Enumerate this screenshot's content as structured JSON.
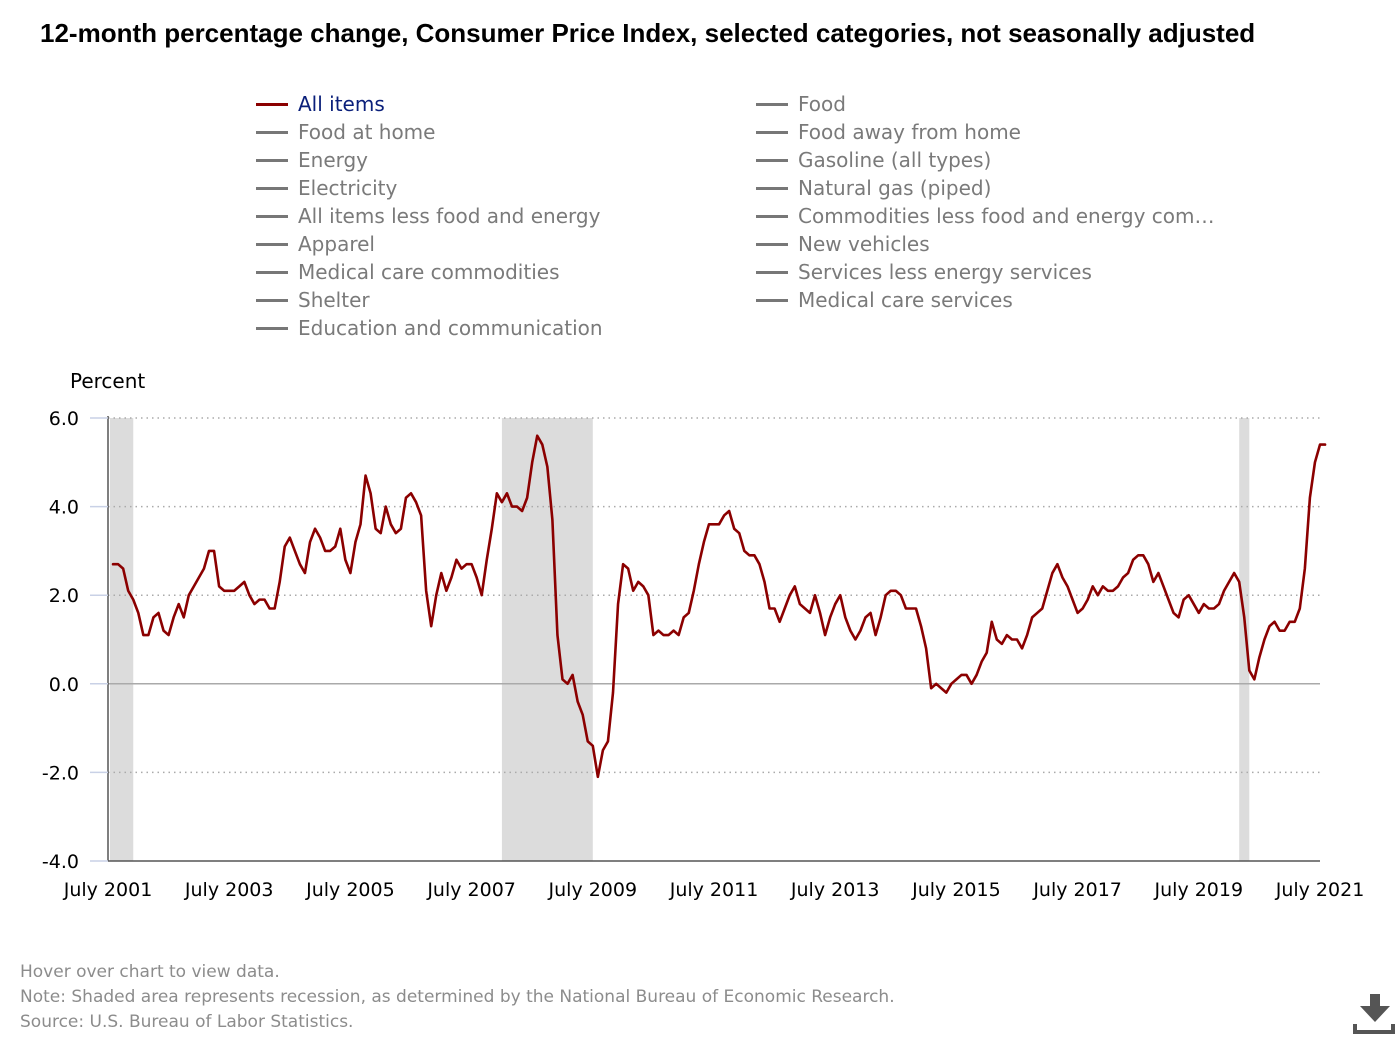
{
  "title": "12-month percentage change, Consumer Price Index, selected categories, not seasonally adjusted",
  "legend": [
    {
      "label": "All items",
      "active": true
    },
    {
      "label": "Food",
      "active": false
    },
    {
      "label": "Food at home",
      "active": false
    },
    {
      "label": "Food away from home",
      "active": false
    },
    {
      "label": "Energy",
      "active": false
    },
    {
      "label": "Gasoline (all types)",
      "active": false
    },
    {
      "label": "Electricity",
      "active": false
    },
    {
      "label": "Natural gas (piped)",
      "active": false
    },
    {
      "label": "All items less food and energy",
      "active": false
    },
    {
      "label": "Commodities less food and energy com…",
      "active": false
    },
    {
      "label": "Apparel",
      "active": false
    },
    {
      "label": "New vehicles",
      "active": false
    },
    {
      "label": "Medical care commodities",
      "active": false
    },
    {
      "label": "Services less energy services",
      "active": false
    },
    {
      "label": "Shelter",
      "active": false
    },
    {
      "label": "Medical care services",
      "active": false
    },
    {
      "label": "Education and communication",
      "active": false
    }
  ],
  "footer": {
    "hover": "Hover over chart to view data.",
    "note": "Note: Shaded area represents recession, as determined by the National Bureau of Economic Research.",
    "source": "Source: U.S. Bureau of Labor Statistics."
  },
  "icons": {
    "download": "download-icon"
  },
  "chart_data": {
    "type": "line",
    "ylabel": "Percent",
    "ylim": [
      -4.0,
      6.0
    ],
    "yticks": [
      -4.0,
      -2.0,
      0.0,
      2.0,
      4.0,
      6.0
    ],
    "ytick_labels": [
      "-4.0",
      "-2.0",
      "0.0",
      "2.0",
      "4.0",
      "6.0"
    ],
    "xlim": [
      "2001-06",
      "2021-06"
    ],
    "xticks": [
      "2001-06",
      "2003-06",
      "2005-06",
      "2007-06",
      "2009-06",
      "2011-06",
      "2013-06",
      "2015-06",
      "2017-06",
      "2019-06",
      "2021-06"
    ],
    "xtick_labels": [
      "July 2001",
      "July 2003",
      "July 2005",
      "July 2007",
      "July 2009",
      "July 2011",
      "July 2013",
      "July 2015",
      "July 2017",
      "July 2019",
      "July 2021"
    ],
    "grid": true,
    "colors": {
      "series": "#8b0000",
      "recession": "#dcdcdc",
      "axis": "#555555",
      "grid": "#aaaaaa",
      "zero_line": "#aaaaaa"
    },
    "recessions": [
      [
        "2001-03",
        "2001-11"
      ],
      [
        "2007-12",
        "2009-06"
      ],
      [
        "2020-02",
        "2020-04"
      ]
    ],
    "series": [
      {
        "name": "All items",
        "x": [
          "2001-07",
          "2001-08",
          "2001-09",
          "2001-10",
          "2001-11",
          "2001-12",
          "2002-01",
          "2002-02",
          "2002-03",
          "2002-04",
          "2002-05",
          "2002-06",
          "2002-07",
          "2002-08",
          "2002-09",
          "2002-10",
          "2002-11",
          "2002-12",
          "2003-01",
          "2003-02",
          "2003-03",
          "2003-04",
          "2003-05",
          "2003-06",
          "2003-07",
          "2003-08",
          "2003-09",
          "2003-10",
          "2003-11",
          "2003-12",
          "2004-01",
          "2004-02",
          "2004-03",
          "2004-04",
          "2004-05",
          "2004-06",
          "2004-07",
          "2004-08",
          "2004-09",
          "2004-10",
          "2004-11",
          "2004-12",
          "2005-01",
          "2005-02",
          "2005-03",
          "2005-04",
          "2005-05",
          "2005-06",
          "2005-07",
          "2005-08",
          "2005-09",
          "2005-10",
          "2005-11",
          "2005-12",
          "2006-01",
          "2006-02",
          "2006-03",
          "2006-04",
          "2006-05",
          "2006-06",
          "2006-07",
          "2006-08",
          "2006-09",
          "2006-10",
          "2006-11",
          "2006-12",
          "2007-01",
          "2007-02",
          "2007-03",
          "2007-04",
          "2007-05",
          "2007-06",
          "2007-07",
          "2007-08",
          "2007-09",
          "2007-10",
          "2007-11",
          "2007-12",
          "2008-01",
          "2008-02",
          "2008-03",
          "2008-04",
          "2008-05",
          "2008-06",
          "2008-07",
          "2008-08",
          "2008-09",
          "2008-10",
          "2008-11",
          "2008-12",
          "2009-01",
          "2009-02",
          "2009-03",
          "2009-04",
          "2009-05",
          "2009-06",
          "2009-07",
          "2009-08",
          "2009-09",
          "2009-10",
          "2009-11",
          "2009-12",
          "2010-01",
          "2010-02",
          "2010-03",
          "2010-04",
          "2010-05",
          "2010-06",
          "2010-07",
          "2010-08",
          "2010-09",
          "2010-10",
          "2010-11",
          "2010-12",
          "2011-01",
          "2011-02",
          "2011-03",
          "2011-04",
          "2011-05",
          "2011-06",
          "2011-07",
          "2011-08",
          "2011-09",
          "2011-10",
          "2011-11",
          "2011-12",
          "2012-01",
          "2012-02",
          "2012-03",
          "2012-04",
          "2012-05",
          "2012-06",
          "2012-07",
          "2012-08",
          "2012-09",
          "2012-10",
          "2012-11",
          "2012-12",
          "2013-01",
          "2013-02",
          "2013-03",
          "2013-04",
          "2013-05",
          "2013-06",
          "2013-07",
          "2013-08",
          "2013-09",
          "2013-10",
          "2013-11",
          "2013-12",
          "2014-01",
          "2014-02",
          "2014-03",
          "2014-04",
          "2014-05",
          "2014-06",
          "2014-07",
          "2014-08",
          "2014-09",
          "2014-10",
          "2014-11",
          "2014-12",
          "2015-01",
          "2015-02",
          "2015-03",
          "2015-04",
          "2015-05",
          "2015-06",
          "2015-07",
          "2015-08",
          "2015-09",
          "2015-10",
          "2015-11",
          "2015-12",
          "2016-01",
          "2016-02",
          "2016-03",
          "2016-04",
          "2016-05",
          "2016-06",
          "2016-07",
          "2016-08",
          "2016-09",
          "2016-10",
          "2016-11",
          "2016-12",
          "2017-01",
          "2017-02",
          "2017-03",
          "2017-04",
          "2017-05",
          "2017-06",
          "2017-07",
          "2017-08",
          "2017-09",
          "2017-10",
          "2017-11",
          "2017-12",
          "2018-01",
          "2018-02",
          "2018-03",
          "2018-04",
          "2018-05",
          "2018-06",
          "2018-07",
          "2018-08",
          "2018-09",
          "2018-10",
          "2018-11",
          "2018-12",
          "2019-01",
          "2019-02",
          "2019-03",
          "2019-04",
          "2019-05",
          "2019-06",
          "2019-07",
          "2019-08",
          "2019-09",
          "2019-10",
          "2019-11",
          "2019-12",
          "2020-01",
          "2020-02",
          "2020-03",
          "2020-04",
          "2020-05",
          "2020-06",
          "2020-07",
          "2020-08",
          "2020-09",
          "2020-10",
          "2020-11",
          "2020-12",
          "2021-01",
          "2021-02",
          "2021-03",
          "2021-04",
          "2021-05",
          "2021-06",
          "2021-07"
        ],
        "values": [
          2.7,
          2.7,
          2.6,
          2.1,
          1.9,
          1.6,
          1.1,
          1.1,
          1.5,
          1.6,
          1.2,
          1.1,
          1.5,
          1.8,
          1.5,
          2.0,
          2.2,
          2.4,
          2.6,
          3.0,
          3.0,
          2.2,
          2.1,
          2.1,
          2.1,
          2.2,
          2.3,
          2.0,
          1.8,
          1.9,
          1.9,
          1.7,
          1.7,
          2.3,
          3.1,
          3.3,
          3.0,
          2.7,
          2.5,
          3.2,
          3.5,
          3.3,
          3.0,
          3.0,
          3.1,
          3.5,
          2.8,
          2.5,
          3.2,
          3.6,
          4.7,
          4.3,
          3.5,
          3.4,
          4.0,
          3.6,
          3.4,
          3.5,
          4.2,
          4.3,
          4.1,
          3.8,
          2.1,
          1.3,
          2.0,
          2.5,
          2.1,
          2.4,
          2.8,
          2.6,
          2.7,
          2.7,
          2.4,
          2.0,
          2.8,
          3.5,
          4.3,
          4.1,
          4.3,
          4.0,
          4.0,
          3.9,
          4.2,
          5.0,
          5.6,
          5.4,
          4.9,
          3.7,
          1.1,
          0.1,
          0.0,
          0.2,
          -0.4,
          -0.7,
          -1.3,
          -1.4,
          -2.1,
          -1.5,
          -1.3,
          -0.2,
          1.8,
          2.7,
          2.6,
          2.1,
          2.3,
          2.2,
          2.0,
          1.1,
          1.2,
          1.1,
          1.1,
          1.2,
          1.1,
          1.5,
          1.6,
          2.1,
          2.7,
          3.2,
          3.6,
          3.6,
          3.6,
          3.8,
          3.9,
          3.5,
          3.4,
          3.0,
          2.9,
          2.9,
          2.7,
          2.3,
          1.7,
          1.7,
          1.4,
          1.7,
          2.0,
          2.2,
          1.8,
          1.7,
          1.6,
          2.0,
          1.6,
          1.1,
          1.5,
          1.8,
          2.0,
          1.5,
          1.2,
          1.0,
          1.2,
          1.5,
          1.6,
          1.1,
          1.5,
          2.0,
          2.1,
          2.1,
          2.0,
          1.7,
          1.7,
          1.7,
          1.3,
          0.8,
          -0.1,
          0.0,
          -0.1,
          -0.2,
          0.0,
          0.1,
          0.2,
          0.2,
          0.0,
          0.2,
          0.5,
          0.7,
          1.4,
          1.0,
          0.9,
          1.1,
          1.0,
          1.0,
          0.8,
          1.1,
          1.5,
          1.6,
          1.7,
          2.1,
          2.5,
          2.7,
          2.4,
          2.2,
          1.9,
          1.6,
          1.7,
          1.9,
          2.2,
          2.0,
          2.2,
          2.1,
          2.1,
          2.2,
          2.4,
          2.5,
          2.8,
          2.9,
          2.9,
          2.7,
          2.3,
          2.5,
          2.2,
          1.9,
          1.6,
          1.5,
          1.9,
          2.0,
          1.8,
          1.6,
          1.8,
          1.7,
          1.7,
          1.8,
          2.1,
          2.3,
          2.5,
          2.3,
          1.5,
          0.3,
          0.1,
          0.6,
          1.0,
          1.3,
          1.4,
          1.2,
          1.2,
          1.4,
          1.4,
          1.7,
          2.6,
          4.2,
          5.0,
          5.4,
          5.4
        ]
      }
    ]
  }
}
